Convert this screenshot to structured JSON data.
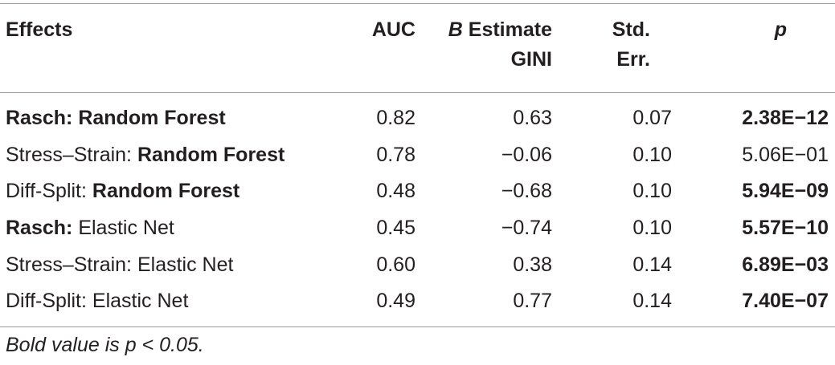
{
  "table": {
    "headers": {
      "effects": "Effects",
      "auc": "AUC",
      "estimate_b": "B",
      "estimate_word": "Estimate",
      "estimate_line2": "GINI",
      "std_line1": "Std.",
      "std_line2": "Err.",
      "p": "p"
    },
    "rows": [
      {
        "prefix": "Rasch:",
        "prefix_bold": true,
        "model": "Random Forest",
        "model_bold": true,
        "auc": "0.82",
        "estimate": "0.63",
        "std_err": "0.07",
        "p": "2.38E−12",
        "p_bold": true
      },
      {
        "prefix": "Stress–Strain:",
        "prefix_bold": false,
        "model": "Random Forest",
        "model_bold": true,
        "auc": "0.78",
        "estimate": "−0.06",
        "std_err": "0.10",
        "p": "5.06E−01",
        "p_bold": false
      },
      {
        "prefix": "Diff-Split:",
        "prefix_bold": false,
        "model": "Random Forest",
        "model_bold": true,
        "auc": "0.48",
        "estimate": "−0.68",
        "std_err": "0.10",
        "p": "5.94E−09",
        "p_bold": true
      },
      {
        "prefix": "Rasch:",
        "prefix_bold": true,
        "model": "Elastic Net",
        "model_bold": false,
        "auc": "0.45",
        "estimate": "−0.74",
        "std_err": "0.10",
        "p": "5.57E−10",
        "p_bold": true
      },
      {
        "prefix": "Stress–Strain:",
        "prefix_bold": false,
        "model": "Elastic Net",
        "model_bold": false,
        "auc": "0.60",
        "estimate": "0.38",
        "std_err": "0.14",
        "p": "6.89E−03",
        "p_bold": true
      },
      {
        "prefix": "Diff-Split:",
        "prefix_bold": false,
        "model": "Elastic Net",
        "model_bold": false,
        "auc": "0.49",
        "estimate": "0.77",
        "std_err": "0.14",
        "p": "7.40E−07",
        "p_bold": true
      }
    ]
  },
  "footnote": "Bold value is p < 0.05."
}
